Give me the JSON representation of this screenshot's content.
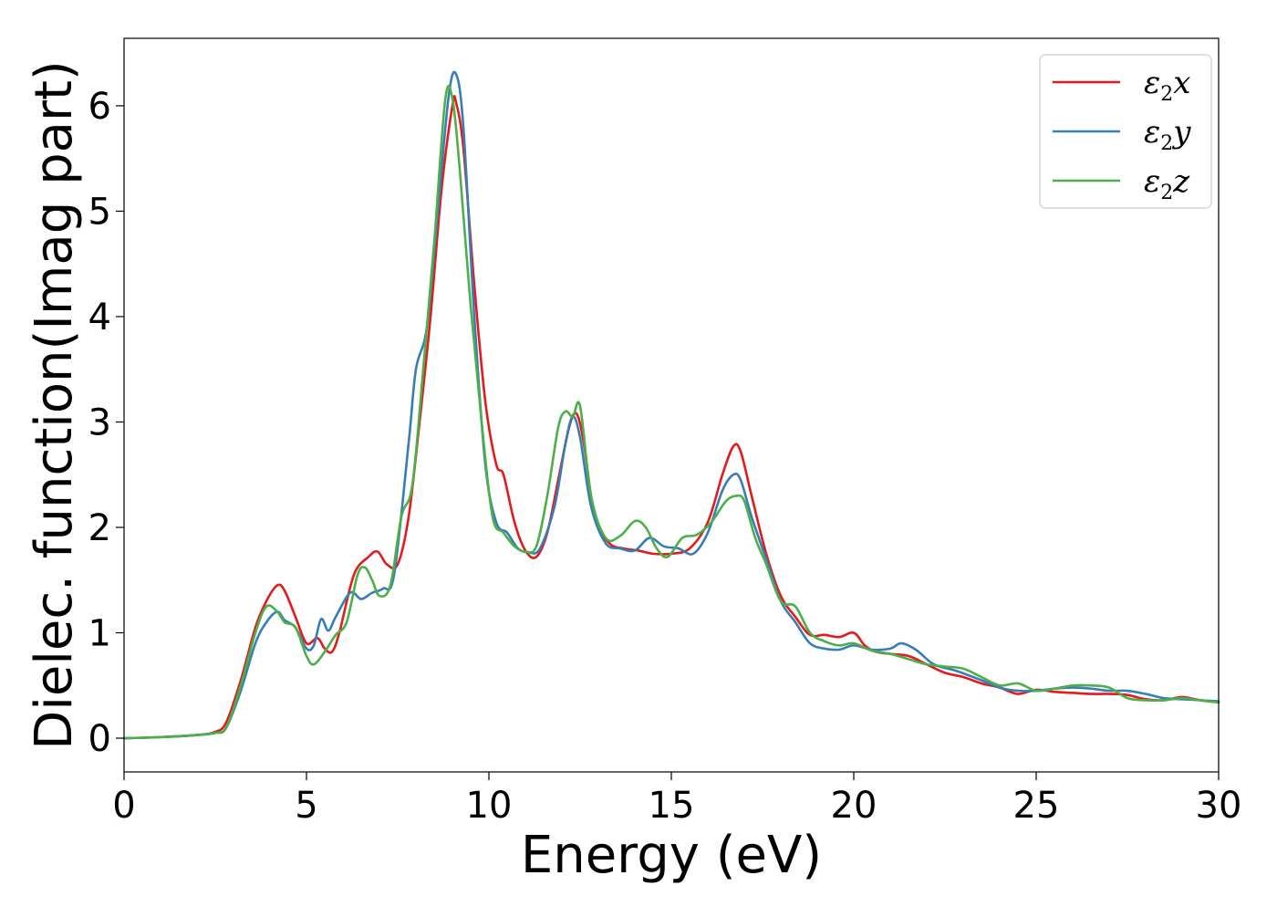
{
  "chart_data": {
    "type": "line",
    "xlabel": "Energy (eV)",
    "ylabel": "Dielec. function(Imag part)",
    "xlim": [
      0,
      30
    ],
    "ylim": [
      -0.32,
      6.64
    ],
    "xticks": [
      0,
      5,
      10,
      15,
      20,
      25,
      30
    ],
    "yticks": [
      0,
      1,
      2,
      3,
      4,
      5,
      6
    ],
    "grid": false,
    "legend_position": "top-right",
    "series": [
      {
        "name": "ε2x",
        "legend": {
          "symbol": "ε",
          "sub": "2",
          "var": "x"
        },
        "color": "#e41a1c",
        "x": [
          0,
          1,
          2,
          2.5,
          2.8,
          3.2,
          3.6,
          3.9,
          4.2,
          4.4,
          4.7,
          5.0,
          5.3,
          5.5,
          5.7,
          5.9,
          6.3,
          6.7,
          6.95,
          7.2,
          7.5,
          7.8,
          8.1,
          8.4,
          8.7,
          9.0,
          9.1,
          9.3,
          9.6,
          9.9,
          10.2,
          10.4,
          10.7,
          11.0,
          11.3,
          11.6,
          11.9,
          12.2,
          12.4,
          12.6,
          12.9,
          13.3,
          13.7,
          14.1,
          14.5,
          15.0,
          15.5,
          16.0,
          16.4,
          16.7,
          16.9,
          17.2,
          17.6,
          18.0,
          18.4,
          18.8,
          19.2,
          19.6,
          20.0,
          20.3,
          20.6,
          21.0,
          21.5,
          22.0,
          22.5,
          23.0,
          23.5,
          24.0,
          24.5,
          25.0,
          25.5,
          26.0,
          26.5,
          27.0,
          27.5,
          28.0,
          28.5,
          29.0,
          29.5,
          30.0
        ],
        "y": [
          0,
          0.01,
          0.03,
          0.06,
          0.15,
          0.55,
          1.05,
          1.3,
          1.45,
          1.4,
          1.15,
          0.9,
          0.95,
          0.85,
          0.82,
          1.0,
          1.55,
          1.72,
          1.77,
          1.65,
          1.65,
          2.1,
          3.0,
          4.0,
          5.2,
          6.0,
          6.03,
          5.6,
          4.3,
          3.2,
          2.6,
          2.5,
          2.05,
          1.78,
          1.72,
          1.95,
          2.45,
          2.95,
          3.08,
          2.8,
          2.1,
          1.85,
          1.8,
          1.78,
          1.75,
          1.75,
          1.8,
          2.05,
          2.5,
          2.77,
          2.72,
          2.3,
          1.75,
          1.35,
          1.15,
          0.98,
          0.98,
          0.96,
          1.0,
          0.88,
          0.82,
          0.8,
          0.78,
          0.7,
          0.62,
          0.58,
          0.52,
          0.48,
          0.42,
          0.46,
          0.44,
          0.43,
          0.42,
          0.42,
          0.41,
          0.37,
          0.36,
          0.39,
          0.36,
          0.34
        ]
      },
      {
        "name": "ε2y",
        "legend": {
          "symbol": "ε",
          "sub": "2",
          "var": "y"
        },
        "color": "#377eb8",
        "x": [
          0,
          1,
          2,
          2.5,
          2.8,
          3.2,
          3.6,
          3.9,
          4.2,
          4.4,
          4.7,
          5.0,
          5.2,
          5.4,
          5.6,
          5.8,
          6.2,
          6.5,
          6.8,
          7.1,
          7.4,
          7.8,
          8.0,
          8.3,
          8.6,
          8.9,
          9.1,
          9.3,
          9.6,
          9.9,
          10.2,
          10.5,
          10.8,
          11.1,
          11.4,
          11.8,
          12.1,
          12.3,
          12.5,
          12.8,
          13.2,
          13.6,
          14.0,
          14.4,
          14.8,
          15.2,
          15.6,
          16.0,
          16.4,
          16.7,
          16.9,
          17.2,
          17.6,
          18.0,
          18.4,
          18.8,
          19.2,
          19.6,
          20.0,
          20.5,
          21.0,
          21.3,
          21.7,
          22.2,
          22.8,
          23.5,
          24.0,
          24.5,
          25.0,
          25.5,
          26.0,
          26.5,
          27.0,
          27.5,
          28.0,
          28.5,
          29.0,
          29.5,
          30.0
        ],
        "y": [
          0,
          0.01,
          0.03,
          0.05,
          0.1,
          0.45,
          0.9,
          1.1,
          1.2,
          1.12,
          1.05,
          0.85,
          0.88,
          1.13,
          1.02,
          1.15,
          1.38,
          1.32,
          1.38,
          1.42,
          1.55,
          2.8,
          3.5,
          3.9,
          5.0,
          6.1,
          6.3,
          5.8,
          4.0,
          2.6,
          2.05,
          1.95,
          1.8,
          1.76,
          1.8,
          2.2,
          2.8,
          3.05,
          2.85,
          2.2,
          1.85,
          1.8,
          1.78,
          1.9,
          1.82,
          1.8,
          1.75,
          1.95,
          2.35,
          2.5,
          2.45,
          2.1,
          1.7,
          1.3,
          1.1,
          0.9,
          0.85,
          0.84,
          0.88,
          0.84,
          0.85,
          0.9,
          0.84,
          0.7,
          0.64,
          0.55,
          0.48,
          0.45,
          0.45,
          0.47,
          0.48,
          0.47,
          0.45,
          0.45,
          0.42,
          0.38,
          0.37,
          0.36,
          0.35
        ]
      },
      {
        "name": "ε2z",
        "legend": {
          "symbol": "ε",
          "sub": "2",
          "var": "z"
        },
        "color": "#4daf4a",
        "x": [
          0,
          1,
          2,
          2.5,
          2.8,
          3.2,
          3.6,
          3.9,
          4.2,
          4.4,
          4.7,
          5.0,
          5.2,
          5.5,
          5.8,
          6.1,
          6.4,
          6.6,
          6.8,
          7.0,
          7.3,
          7.6,
          7.9,
          8.2,
          8.5,
          8.8,
          9.0,
          9.2,
          9.5,
          9.8,
          10.1,
          10.4,
          10.7,
          11.0,
          11.3,
          11.6,
          11.9,
          12.1,
          12.3,
          12.5,
          12.8,
          13.2,
          13.6,
          14.0,
          14.3,
          14.6,
          14.9,
          15.3,
          15.7,
          16.1,
          16.5,
          16.8,
          17.0,
          17.3,
          17.6,
          18.0,
          18.4,
          18.8,
          19.2,
          19.6,
          20.0,
          20.5,
          21.0,
          21.5,
          22.0,
          22.5,
          23.0,
          23.5,
          24.0,
          24.5,
          25.0,
          25.5,
          26.0,
          26.5,
          27.0,
          27.5,
          28.0,
          28.5,
          29.0,
          29.5,
          30.0
        ],
        "y": [
          0,
          0.01,
          0.03,
          0.05,
          0.1,
          0.5,
          1.0,
          1.25,
          1.2,
          1.1,
          1.05,
          0.78,
          0.7,
          0.82,
          0.98,
          1.1,
          1.55,
          1.62,
          1.5,
          1.35,
          1.45,
          2.1,
          2.4,
          3.5,
          4.7,
          6.05,
          6.07,
          5.4,
          4.1,
          3.0,
          2.1,
          1.95,
          1.82,
          1.77,
          1.82,
          2.3,
          2.95,
          3.1,
          3.05,
          3.15,
          2.3,
          1.9,
          1.92,
          2.06,
          2.0,
          1.8,
          1.72,
          1.9,
          1.93,
          2.05,
          2.25,
          2.3,
          2.25,
          1.9,
          1.65,
          1.3,
          1.25,
          1.0,
          0.92,
          0.88,
          0.9,
          0.83,
          0.8,
          0.75,
          0.7,
          0.68,
          0.66,
          0.58,
          0.5,
          0.52,
          0.45,
          0.47,
          0.5,
          0.5,
          0.48,
          0.38,
          0.36,
          0.36,
          0.38,
          0.36,
          0.34
        ]
      }
    ]
  }
}
